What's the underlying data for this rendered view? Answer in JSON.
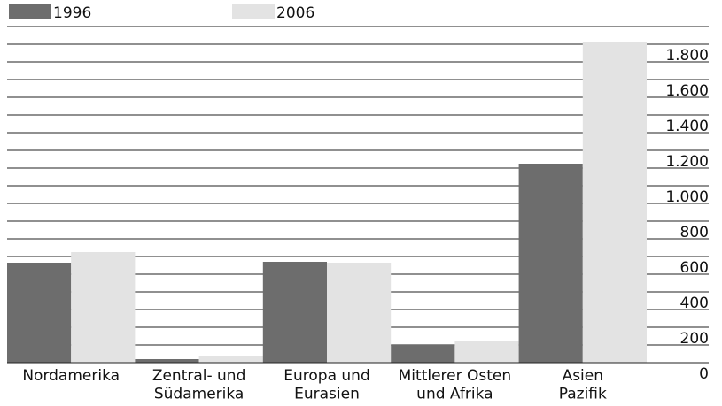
{
  "chart_data": {
    "type": "bar",
    "categories": [
      "Nordamerika",
      "Zentral- und\nSüdamerika",
      "Europa und\nEurasien",
      "Mittlerer Osten\nund Afrika",
      "Asien\nPazifik"
    ],
    "series": [
      {
        "name": "1996",
        "color": "#6d6d6d",
        "values": [
          565,
          20,
          570,
          100,
          1125
        ]
      },
      {
        "name": "2006",
        "color": "#e3e3e3",
        "values": [
          625,
          35,
          565,
          120,
          1815
        ]
      }
    ],
    "ylim": [
      0,
      1900
    ],
    "yticks": [
      0,
      200,
      400,
      600,
      800,
      {
        "value": 1000,
        "label": "1.000"
      },
      {
        "value": 1200,
        "label": "1.200"
      },
      {
        "value": 1400,
        "label": "1.400"
      },
      {
        "value": 1600,
        "label": "1.600"
      },
      {
        "value": 1800,
        "label": "1.800"
      }
    ],
    "minor_yticks": [
      100,
      300,
      500,
      700,
      900,
      1100,
      1300,
      1500,
      1700,
      1900
    ],
    "grid": true,
    "y_axis_side": "right",
    "legend": "top"
  }
}
